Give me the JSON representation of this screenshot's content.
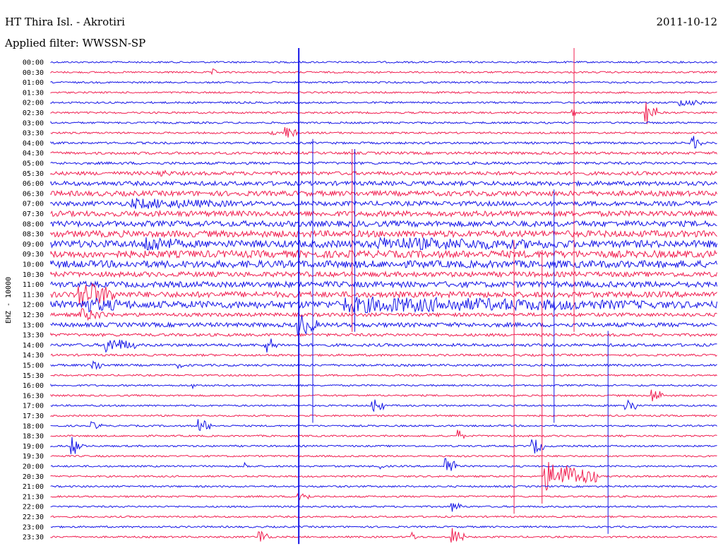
{
  "header": {
    "station": "HT Thira Isl. - Akrotiri",
    "date": "2011-10-12",
    "filter": "Applied filter: WWSSN-SP"
  },
  "chart_data": {
    "type": "line",
    "channel_label": "EHZ - 10000",
    "colors": {
      "even_row": "#1414e6",
      "odd_row": "#f01e50"
    },
    "rows": [
      {
        "label": "00:00",
        "noise": 1.2
      },
      {
        "label": "00:30",
        "noise": 1.2
      },
      {
        "label": "01:00",
        "noise": 1.2
      },
      {
        "label": "01:30",
        "noise": 1.2
      },
      {
        "label": "02:00",
        "noise": 1.3
      },
      {
        "label": "02:30",
        "noise": 1.3
      },
      {
        "label": "03:00",
        "noise": 1.3
      },
      {
        "label": "03:30",
        "noise": 1.3
      },
      {
        "label": "04:00",
        "noise": 1.5
      },
      {
        "label": "04:30",
        "noise": 1.8
      },
      {
        "label": "05:00",
        "noise": 1.8
      },
      {
        "label": "05:30",
        "noise": 2.5
      },
      {
        "label": "06:00",
        "noise": 3.0
      },
      {
        "label": "06:30",
        "noise": 3.5
      },
      {
        "label": "07:00",
        "noise": 3.2
      },
      {
        "label": "07:30",
        "noise": 3.8
      },
      {
        "label": "08:00",
        "noise": 4.0
      },
      {
        "label": "08:30",
        "noise": 4.5
      },
      {
        "label": "09:00",
        "noise": 5.0
      },
      {
        "label": "09:30",
        "noise": 5.0
      },
      {
        "label": "10:00",
        "noise": 5.0
      },
      {
        "label": "10:30",
        "noise": 3.5
      },
      {
        "label": "11:00",
        "noise": 4.0
      },
      {
        "label": "11:30",
        "noise": 4.0
      },
      {
        "label": "12:00",
        "noise": 5.0
      },
      {
        "label": "12:30",
        "noise": 2.5
      },
      {
        "label": "13:00",
        "noise": 3.0
      },
      {
        "label": "13:30",
        "noise": 2.0
      },
      {
        "label": "14:00",
        "noise": 2.0
      },
      {
        "label": "14:30",
        "noise": 1.5
      },
      {
        "label": "15:00",
        "noise": 1.5
      },
      {
        "label": "15:30",
        "noise": 1.2
      },
      {
        "label": "16:00",
        "noise": 1.2
      },
      {
        "label": "16:30",
        "noise": 1.2
      },
      {
        "label": "17:00",
        "noise": 1.2
      },
      {
        "label": "17:30",
        "noise": 1.2
      },
      {
        "label": "18:00",
        "noise": 1.2
      },
      {
        "label": "18:30",
        "noise": 1.2
      },
      {
        "label": "19:00",
        "noise": 1.2
      },
      {
        "label": "19:30",
        "noise": 1.2
      },
      {
        "label": "20:00",
        "noise": 1.2
      },
      {
        "label": "20:30",
        "noise": 1.2
      },
      {
        "label": "21:00",
        "noise": 1.2
      },
      {
        "label": "21:30",
        "noise": 1.2
      },
      {
        "label": "22:00",
        "noise": 1.2
      },
      {
        "label": "22:30",
        "noise": 1.2
      },
      {
        "label": "23:00",
        "noise": 1.2
      },
      {
        "label": "23:30",
        "noise": 1.2
      }
    ],
    "events": [
      {
        "row": 1,
        "t": 0.24,
        "amp": 6,
        "dur": 0.01
      },
      {
        "row": 7,
        "t": 0.35,
        "amp": 10,
        "dur": 0.02
      },
      {
        "row": 7,
        "t": 0.33,
        "amp": 6,
        "dur": 0.01
      },
      {
        "row": 5,
        "t": 0.89,
        "amp": 20,
        "dur": 0.02
      },
      {
        "row": 4,
        "t": 0.94,
        "amp": 6,
        "dur": 0.04
      },
      {
        "row": 8,
        "t": 0.96,
        "amp": 12,
        "dur": 0.02
      },
      {
        "row": 5,
        "t": 0.78,
        "amp": 8,
        "dur": 0.01
      },
      {
        "row": 11,
        "t": 0.16,
        "amp": 6,
        "dur": 0.03
      },
      {
        "row": 14,
        "t": 0.12,
        "amp": 8,
        "dur": 0.2
      },
      {
        "row": 18,
        "t": 0.14,
        "amp": 14,
        "dur": 0.06
      },
      {
        "row": 18,
        "t": 0.49,
        "amp": 10,
        "dur": 0.4
      },
      {
        "row": 23,
        "t": 0.04,
        "amp": 22,
        "dur": 0.06
      },
      {
        "row": 24,
        "t": 0.04,
        "amp": 12,
        "dur": 0.1
      },
      {
        "row": 24,
        "t": 0.44,
        "amp": 12,
        "dur": 0.55
      },
      {
        "row": 25,
        "t": 0.04,
        "amp": 10,
        "dur": 0.05
      },
      {
        "row": 26,
        "t": 0.37,
        "amp": 18,
        "dur": 0.03
      },
      {
        "row": 28,
        "t": 0.08,
        "amp": 12,
        "dur": 0.05
      },
      {
        "row": 28,
        "t": 0.32,
        "amp": 14,
        "dur": 0.02
      },
      {
        "row": 30,
        "t": 0.06,
        "amp": 10,
        "dur": 0.02
      },
      {
        "row": 30,
        "t": 0.19,
        "amp": 5,
        "dur": 0.01
      },
      {
        "row": 32,
        "t": 0.21,
        "amp": 5,
        "dur": 0.01
      },
      {
        "row": 33,
        "t": 0.9,
        "amp": 12,
        "dur": 0.02
      },
      {
        "row": 34,
        "t": 0.48,
        "amp": 14,
        "dur": 0.02
      },
      {
        "row": 34,
        "t": 0.86,
        "amp": 14,
        "dur": 0.02
      },
      {
        "row": 36,
        "t": 0.06,
        "amp": 6,
        "dur": 0.02
      },
      {
        "row": 36,
        "t": 0.22,
        "amp": 12,
        "dur": 0.02
      },
      {
        "row": 37,
        "t": 0.61,
        "amp": 10,
        "dur": 0.01
      },
      {
        "row": 38,
        "t": 0.03,
        "amp": 14,
        "dur": 0.02
      },
      {
        "row": 38,
        "t": 0.72,
        "amp": 14,
        "dur": 0.02
      },
      {
        "row": 40,
        "t": 0.29,
        "amp": 6,
        "dur": 0.01
      },
      {
        "row": 40,
        "t": 0.49,
        "amp": 6,
        "dur": 0.01
      },
      {
        "row": 40,
        "t": 0.59,
        "amp": 16,
        "dur": 0.02
      },
      {
        "row": 41,
        "t": 0.74,
        "amp": 22,
        "dur": 0.08
      },
      {
        "row": 43,
        "t": 0.37,
        "amp": 10,
        "dur": 0.02
      },
      {
        "row": 44,
        "t": 0.6,
        "amp": 8,
        "dur": 0.02
      },
      {
        "row": 47,
        "t": 0.31,
        "amp": 12,
        "dur": 0.02
      },
      {
        "row": 47,
        "t": 0.6,
        "amp": 14,
        "dur": 0.02
      },
      {
        "row": 47,
        "t": 0.54,
        "amp": 8,
        "dur": 0.01
      }
    ],
    "spikes": [
      {
        "t": 0.372,
        "row_from": 0,
        "row_to": 47
      },
      {
        "t": 0.785,
        "row_from": 0,
        "row_to": 26
      },
      {
        "t": 0.393,
        "row_from": 9,
        "row_to": 35
      },
      {
        "t": 0.737,
        "row_from": 20,
        "row_to": 43
      },
      {
        "t": 0.755,
        "row_from": 14,
        "row_to": 35
      },
      {
        "t": 0.452,
        "row_from": 10,
        "row_to": 26
      },
      {
        "t": 0.456,
        "row_from": 10,
        "row_to": 26
      },
      {
        "t": 0.695,
        "row_from": 19,
        "row_to": 44
      },
      {
        "t": 0.836,
        "row_from": 28,
        "row_to": 46
      }
    ]
  }
}
